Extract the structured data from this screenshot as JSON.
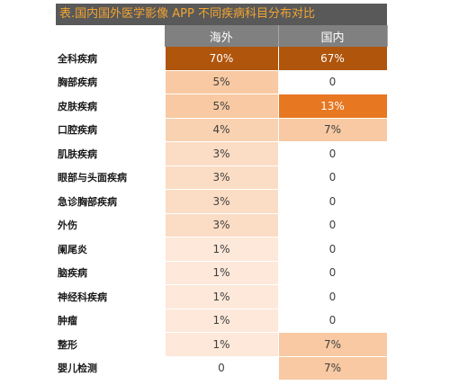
{
  "chart_data": {
    "type": "table",
    "title": "表.国内国外医学影像 APP 不同疾病科目分布对比",
    "columns": [
      "海外",
      "国内"
    ],
    "rows": [
      {
        "label": "全科疾病",
        "values": [
          "70%",
          "67%"
        ],
        "nums": [
          70,
          67
        ]
      },
      {
        "label": "胸部疾病",
        "values": [
          "5%",
          "0"
        ],
        "nums": [
          5,
          0
        ]
      },
      {
        "label": "皮肤疾病",
        "values": [
          "5%",
          "13%"
        ],
        "nums": [
          5,
          13
        ]
      },
      {
        "label": "口腔疾病",
        "values": [
          "4%",
          "7%"
        ],
        "nums": [
          4,
          7
        ]
      },
      {
        "label": "肌肤疾病",
        "values": [
          "3%",
          "0"
        ],
        "nums": [
          3,
          0
        ]
      },
      {
        "label": "眼部与头面疾病",
        "values": [
          "3%",
          "0"
        ],
        "nums": [
          3,
          0
        ]
      },
      {
        "label": "急诊胸部疾病",
        "values": [
          "3%",
          "0"
        ],
        "nums": [
          3,
          0
        ]
      },
      {
        "label": "外伤",
        "values": [
          "3%",
          "0"
        ],
        "nums": [
          3,
          0
        ]
      },
      {
        "label": "阑尾炎",
        "values": [
          "1%",
          "0"
        ],
        "nums": [
          1,
          0
        ]
      },
      {
        "label": "脑疾病",
        "values": [
          "1%",
          "0"
        ],
        "nums": [
          1,
          0
        ]
      },
      {
        "label": "神经科疾病",
        "values": [
          "1%",
          "0"
        ],
        "nums": [
          1,
          0
        ]
      },
      {
        "label": "肿瘤",
        "values": [
          "1%",
          "0"
        ],
        "nums": [
          1,
          0
        ]
      },
      {
        "label": "整形",
        "values": [
          "1%",
          "7%"
        ],
        "nums": [
          1,
          7
        ]
      },
      {
        "label": "婴儿检测",
        "values": [
          "0",
          "7%"
        ],
        "nums": [
          0,
          7
        ]
      }
    ]
  }
}
